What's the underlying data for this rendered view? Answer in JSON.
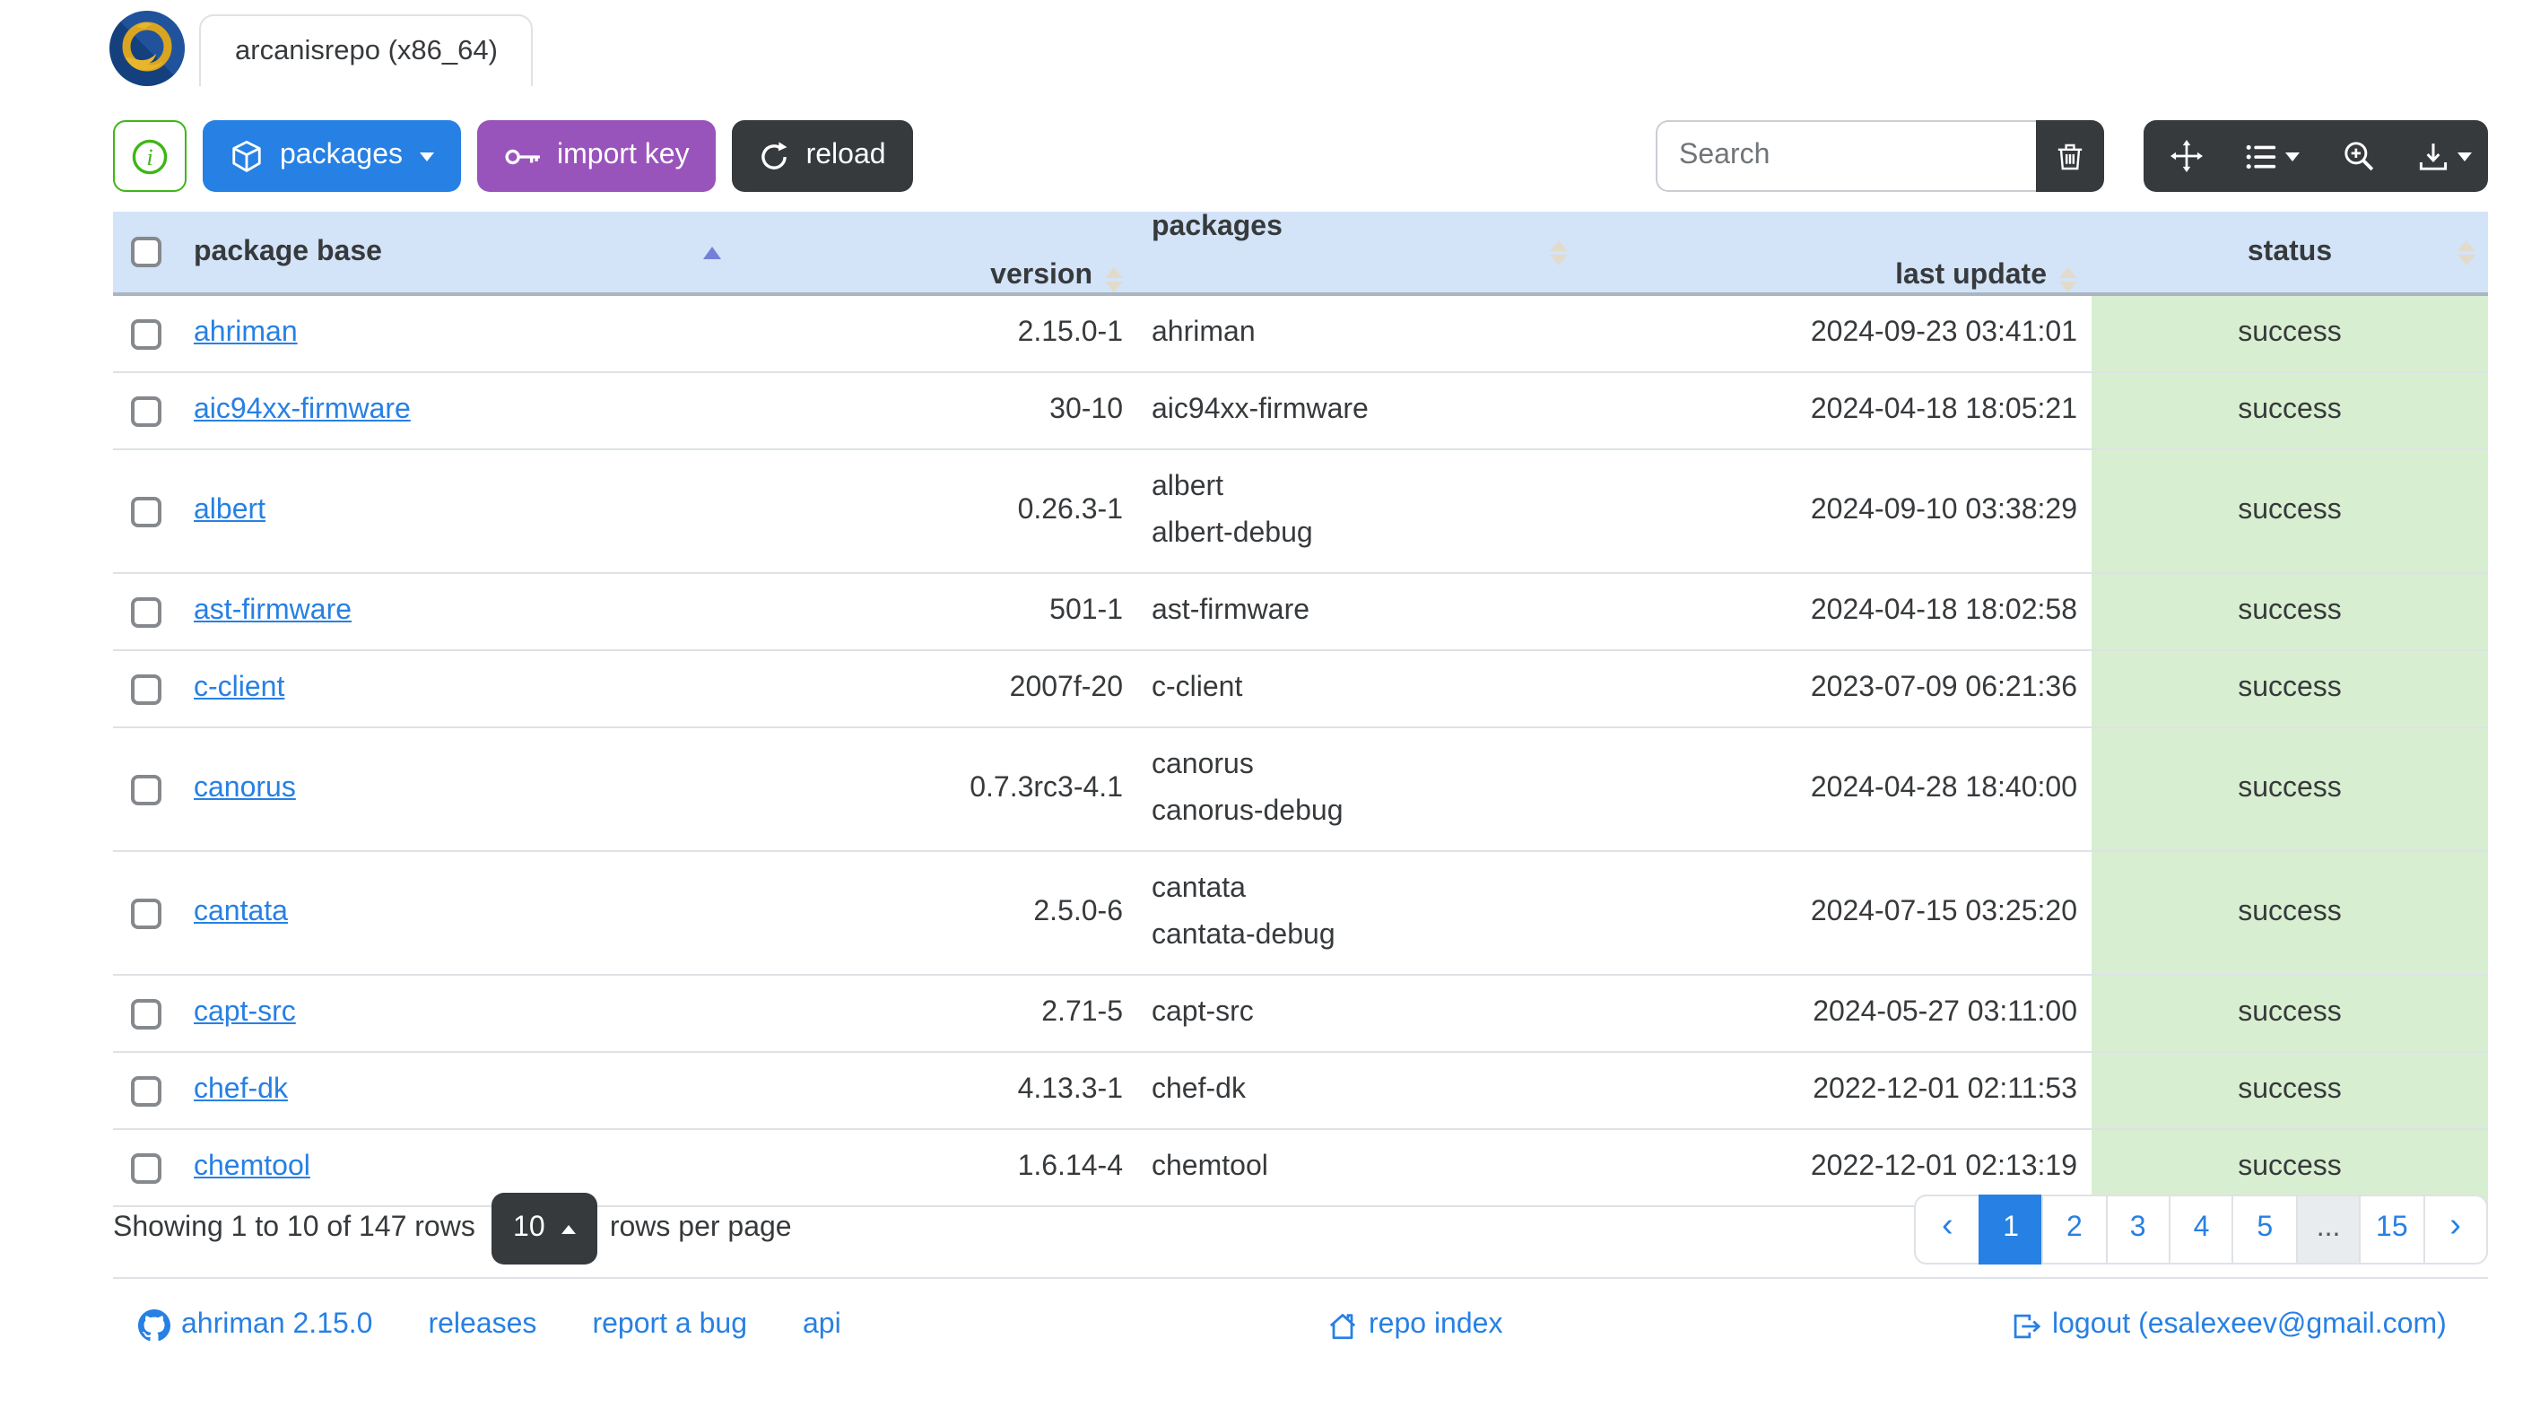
{
  "window": {
    "tab_title": "arcanisrepo (x86_64)"
  },
  "toolbar": {
    "packages_label": "packages",
    "import_key_label": "import key",
    "reload_label": "reload",
    "search_placeholder": "Search"
  },
  "table": {
    "headers": {
      "package_base": "package base",
      "version": "version",
      "packages": "packages",
      "last_update": "last update",
      "status": "status"
    },
    "sorted_by": "package base ascending",
    "rows": [
      {
        "base": "ahriman",
        "version": "2.15.0-1",
        "packages": [
          "ahriman"
        ],
        "last_update": "2024-09-23 03:41:01",
        "status": "success"
      },
      {
        "base": "aic94xx-firmware",
        "version": "30-10",
        "packages": [
          "aic94xx-firmware"
        ],
        "last_update": "2024-04-18 18:05:21",
        "status": "success"
      },
      {
        "base": "albert",
        "version": "0.26.3-1",
        "packages": [
          "albert",
          "albert-debug"
        ],
        "last_update": "2024-09-10 03:38:29",
        "status": "success"
      },
      {
        "base": "ast-firmware",
        "version": "501-1",
        "packages": [
          "ast-firmware"
        ],
        "last_update": "2024-04-18 18:02:58",
        "status": "success"
      },
      {
        "base": "c-client",
        "version": "2007f-20",
        "packages": [
          "c-client"
        ],
        "last_update": "2023-07-09 06:21:36",
        "status": "success"
      },
      {
        "base": "canorus",
        "version": "0.7.3rc3-4.1",
        "packages": [
          "canorus",
          "canorus-debug"
        ],
        "last_update": "2024-04-28 18:40:00",
        "status": "success"
      },
      {
        "base": "cantata",
        "version": "2.5.0-6",
        "packages": [
          "cantata",
          "cantata-debug"
        ],
        "last_update": "2024-07-15 03:25:20",
        "status": "success"
      },
      {
        "base": "capt-src",
        "version": "2.71-5",
        "packages": [
          "capt-src"
        ],
        "last_update": "2024-05-27 03:11:00",
        "status": "success"
      },
      {
        "base": "chef-dk",
        "version": "4.13.3-1",
        "packages": [
          "chef-dk"
        ],
        "last_update": "2022-12-01 02:11:53",
        "status": "success"
      },
      {
        "base": "chemtool",
        "version": "1.6.14-4",
        "packages": [
          "chemtool"
        ],
        "last_update": "2022-12-01 02:13:19",
        "status": "success"
      }
    ]
  },
  "pagination": {
    "summary": "Showing 1 to 10 of 147 rows",
    "page_size": "10",
    "rows_per_page_label": "rows per page",
    "pages": [
      {
        "label": "‹",
        "kind": "prev"
      },
      {
        "label": "1",
        "active": true
      },
      {
        "label": "2"
      },
      {
        "label": "3"
      },
      {
        "label": "4"
      },
      {
        "label": "5"
      },
      {
        "label": "...",
        "kind": "ellipsis"
      },
      {
        "label": "15"
      },
      {
        "label": "›",
        "kind": "next"
      }
    ]
  },
  "footer": {
    "version_link": "ahriman 2.15.0",
    "releases_link": "releases",
    "report_bug_link": "report a bug",
    "api_link": "api",
    "repo_index_link": "repo index",
    "logout_link": "logout (esalexeev@gmail.com)"
  },
  "colors": {
    "primary": "#2780e3",
    "secondary": "#373a3c",
    "info_purple": "#9954bb",
    "success_green": "#3fb618",
    "table_header_bg": "#d3e3f8",
    "status_success_bg": "#d8eed0",
    "border": "#dee2e6"
  }
}
